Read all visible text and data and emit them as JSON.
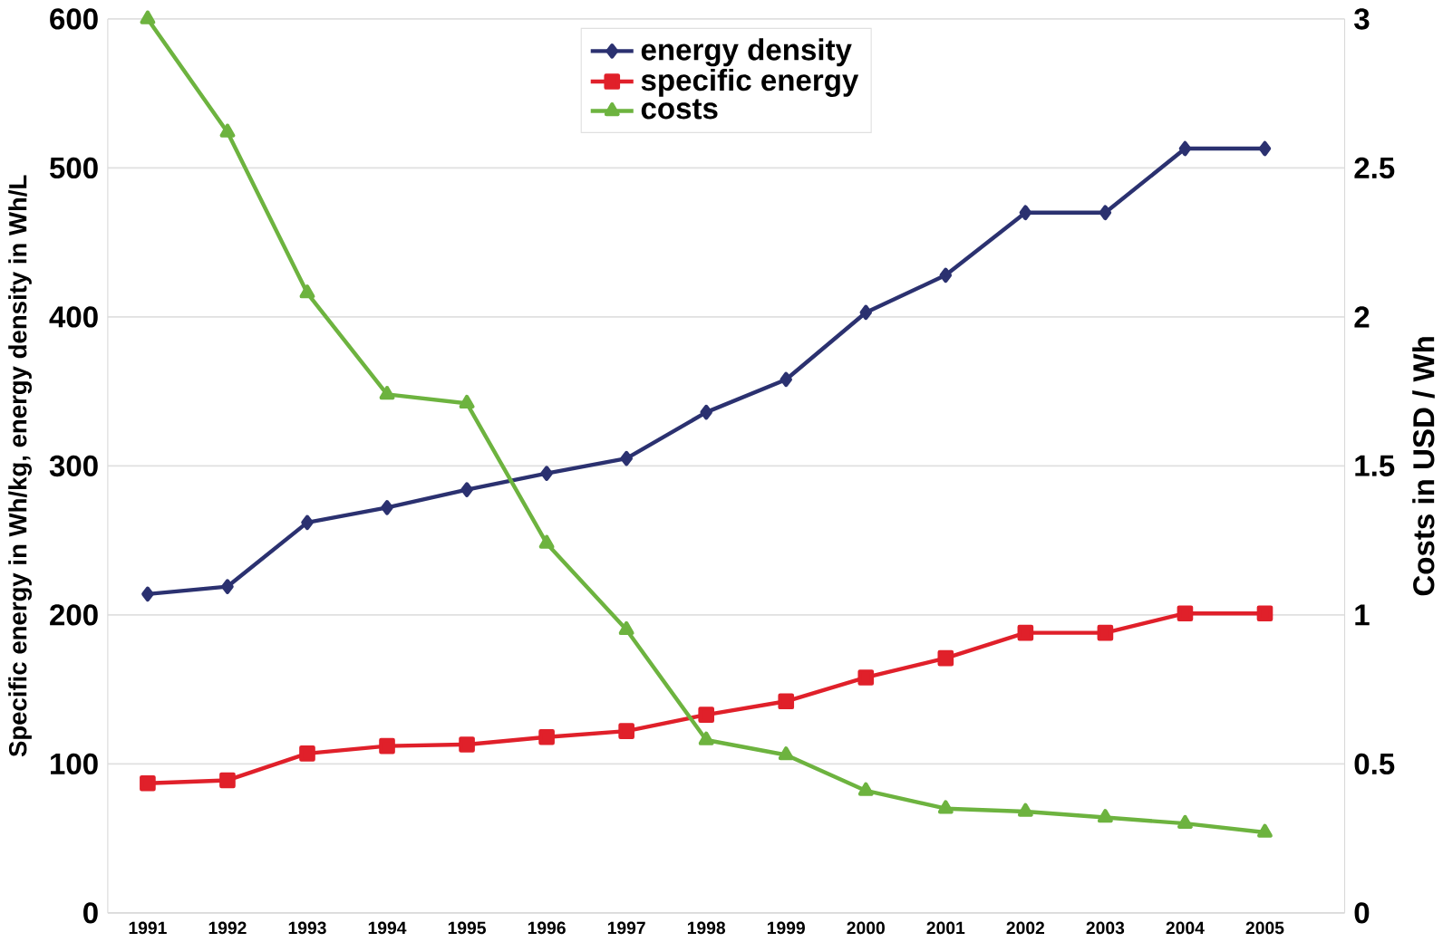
{
  "chart_data": {
    "type": "line",
    "categories": [
      "1991",
      "1992",
      "1993",
      "1994",
      "1995",
      "1996",
      "1997",
      "1998",
      "1999",
      "2000",
      "2001",
      "2002",
      "2003",
      "2004",
      "2005"
    ],
    "ylabel": "Specific energy in Wh/kg, energy density in Wh/L",
    "y2label": "Costs in USD / Wh",
    "ylim": [
      0,
      600
    ],
    "yticks": [
      0,
      100,
      200,
      300,
      400,
      500,
      600
    ],
    "y2lim": [
      0,
      3
    ],
    "y2ticks": [
      0,
      0.5,
      1,
      1.5,
      2,
      2.5,
      3
    ],
    "grid": "y",
    "legend": "top",
    "series": [
      {
        "name": "energy density",
        "color": "#2b3170",
        "marker": "diamond",
        "values": [
          214,
          219,
          262,
          272,
          284,
          295,
          305,
          336,
          358,
          403,
          428,
          470,
          470,
          513,
          513
        ]
      },
      {
        "name": "specific energy",
        "color": "#e0202a",
        "marker": "square",
        "values": [
          87,
          89,
          107,
          112,
          113,
          118,
          122,
          133,
          142,
          158,
          171,
          188,
          188,
          201,
          201
        ]
      },
      {
        "name": "costs",
        "color": "#6db33f",
        "marker": "triangle",
        "axis": "y2",
        "values": [
          3.0,
          2.62,
          2.08,
          1.74,
          1.71,
          1.24,
          0.95,
          0.58,
          0.53,
          0.41,
          0.35,
          0.34,
          0.32,
          0.3,
          0.27
        ]
      }
    ]
  }
}
